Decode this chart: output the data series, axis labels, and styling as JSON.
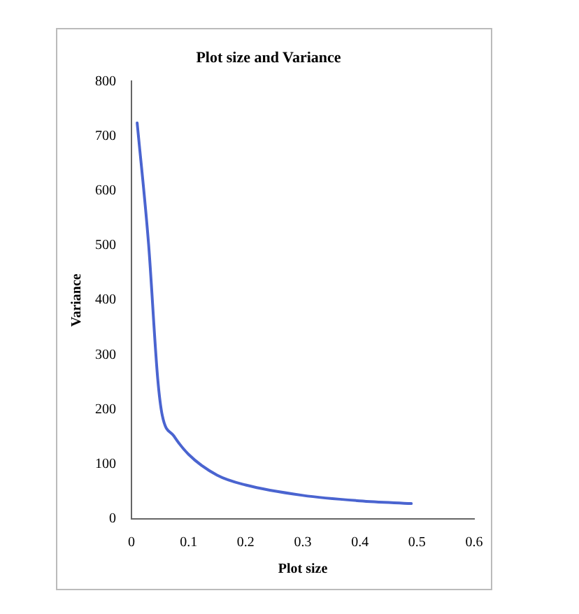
{
  "chart_data": {
    "type": "line",
    "title": "Plot size and Variance",
    "xlabel": "Plot size",
    "ylabel": "Variance",
    "series": [
      {
        "color": "#4a64d0",
        "x": [
          0.01,
          0.03,
          0.046,
          0.054,
          0.074,
          0.1,
          0.15,
          0.2,
          0.3,
          0.4,
          0.49
        ],
        "values": [
          724,
          502,
          256,
          189,
          152,
          118,
          80,
          62,
          43,
          33,
          28
        ]
      }
    ],
    "xlim": [
      0,
      0.6
    ],
    "xticks": [
      0,
      0.1,
      0.2,
      0.3,
      0.4,
      0.5,
      0.6
    ],
    "ylim": [
      0,
      800
    ],
    "yticks": [
      0,
      100,
      200,
      300,
      400,
      500,
      600,
      700,
      800
    ],
    "grid": false,
    "legend": false,
    "marker": "none",
    "line_style": "solid"
  }
}
